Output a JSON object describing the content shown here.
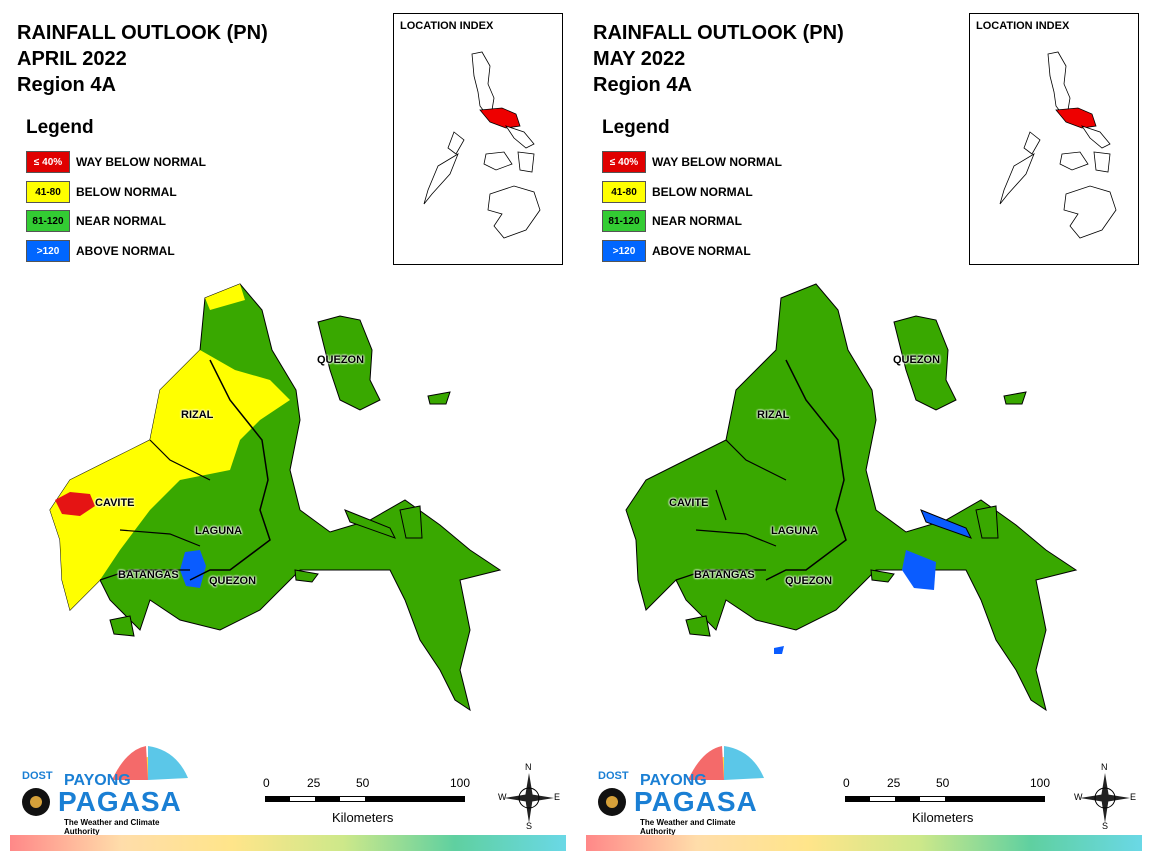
{
  "panels": [
    {
      "title_lines": [
        "RAINFALL OUTLOOK (PN)",
        "APRIL 2022",
        "Region 4A"
      ],
      "month_colors": {
        "cavite": "#e11",
        "rizal": "#ff0",
        "laguna": "#3a2"
      }
    },
    {
      "title_lines": [
        "RAINFALL OUTLOOK (PN)",
        "MAY 2022",
        "Region 4A"
      ]
    }
  ],
  "legend": {
    "title": "Legend",
    "items": [
      {
        "range": "≤ 40%",
        "label": "WAY BELOW NORMAL",
        "color": "#e00000",
        "text_color": "#ffffff"
      },
      {
        "range": "41-80",
        "label": "BELOW NORMAL",
        "color": "#ffff00",
        "text_color": "#000000"
      },
      {
        "range": "81-120",
        "label": "NEAR NORMAL",
        "color": "#33cc33",
        "text_color": "#000000"
      },
      {
        "range": ">120",
        "label": "ABOVE NORMAL",
        "color": "#0066ff",
        "text_color": "#ffffff"
      }
    ]
  },
  "location_index": {
    "title": "LOCATION INDEX"
  },
  "provinces": {
    "quezon_north": "QUEZON",
    "rizal": "RIZAL",
    "cavite": "CAVITE",
    "laguna": "LAGUNA",
    "batangas": "BATANGAS",
    "quezon": "QUEZON"
  },
  "scale": {
    "ticks": [
      "0",
      "25",
      "50",
      "100"
    ],
    "unit": "Kilometers"
  },
  "compass": {
    "n": "N",
    "s": "S",
    "e": "E",
    "w": "W"
  },
  "logo": {
    "dost": "DOST",
    "payong": "PAYONG",
    "pagasa": "PAGASA",
    "tagline": "The Weather and Climate Authority"
  },
  "colors": {
    "green": "#39a800",
    "yellow": "#ffff00",
    "red": "#e51414",
    "blue": "#0a5cff"
  }
}
